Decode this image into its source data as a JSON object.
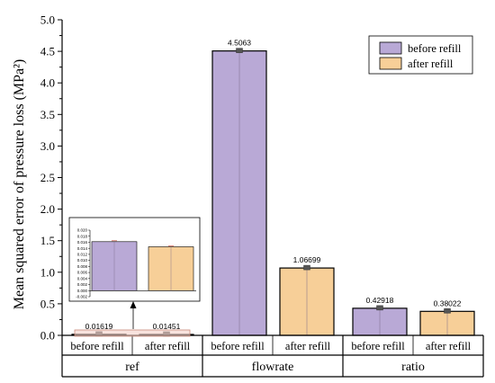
{
  "chart_data": {
    "type": "bar",
    "ylabel": "Mean squared error of pressure loss (MPa²)",
    "ylim": [
      0,
      5.0
    ],
    "yticks": [
      "0.0",
      "0.5",
      "1.0",
      "1.5",
      "2.0",
      "2.5",
      "3.0",
      "3.5",
      "4.0",
      "4.5",
      "5.0"
    ],
    "groups": [
      {
        "name": "ref",
        "categories": [
          "before refill",
          "after refill"
        ],
        "values": [
          0.01619,
          0.01451
        ],
        "labels": [
          "0.01619",
          "0.01451"
        ]
      },
      {
        "name": "flowrate",
        "categories": [
          "before refill",
          "after refill"
        ],
        "values": [
          4.5063,
          1.06699
        ],
        "labels": [
          "4.5063",
          "1.06699"
        ]
      },
      {
        "name": "ratio",
        "categories": [
          "before refill",
          "after refill"
        ],
        "values": [
          0.42918,
          0.38022
        ],
        "labels": [
          "0.42918",
          "0.38022"
        ]
      }
    ],
    "series": [
      {
        "name": "before refill",
        "color": "#b9a9d6"
      },
      {
        "name": "after refill",
        "color": "#f7cf98"
      }
    ],
    "legend_position": "top-right",
    "inset": {
      "ylim": [
        -0.002,
        0.02
      ],
      "yticks": [
        "0.020",
        "0.018",
        "0.016",
        "0.014",
        "0.012",
        "0.010",
        "0.008",
        "0.006",
        "0.004",
        "0.002",
        "0.000",
        "-0.002"
      ],
      "values": [
        0.01619,
        0.01451
      ]
    }
  }
}
